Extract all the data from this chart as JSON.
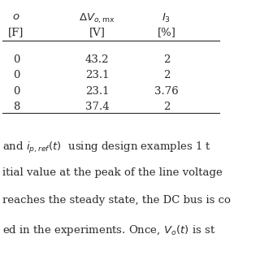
{
  "col2": [
    "43.2",
    "23.1",
    "23.1",
    "37.4"
  ],
  "col3": [
    "2",
    "2",
    "3.76",
    "2"
  ],
  "bg_color": "#ffffff",
  "text_color": "#2b2b2b",
  "font_size": 9.5
}
